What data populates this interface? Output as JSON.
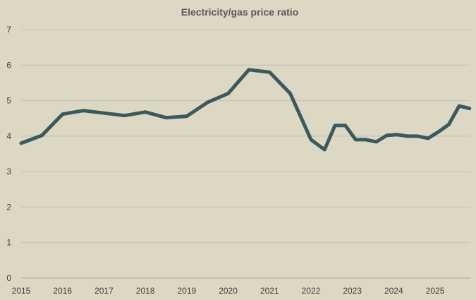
{
  "chart_data": {
    "type": "line",
    "title": "Electricity/gas price ratio",
    "xlabel": "",
    "ylabel": "",
    "ylim": [
      0,
      7
    ],
    "yticks": [
      0,
      1,
      2,
      3,
      4,
      5,
      6,
      7
    ],
    "xlim": [
      2015,
      2025.85
    ],
    "xticks": [
      "2015",
      "2016",
      "2017",
      "2018",
      "2019",
      "2020",
      "2021",
      "2022",
      "2023",
      "2024",
      "2025"
    ],
    "grid": true,
    "legend": "none",
    "series": [
      {
        "name": "Electricity/gas price ratio",
        "color": "#3a5a5e",
        "x": [
          2015.0,
          2015.5,
          2016.0,
          2016.5,
          2017.0,
          2017.5,
          2018.0,
          2018.5,
          2019.0,
          2019.5,
          2020.0,
          2020.5,
          2021.0,
          2021.5,
          2022.0,
          2022.33,
          2022.58,
          2022.83,
          2023.08,
          2023.33,
          2023.58,
          2023.83,
          2024.08,
          2024.33,
          2024.58,
          2024.83,
          2025.08,
          2025.33,
          2025.58,
          2025.83
        ],
        "y": [
          3.8,
          4.02,
          4.62,
          4.72,
          4.65,
          4.58,
          4.68,
          4.52,
          4.56,
          4.95,
          5.2,
          5.87,
          5.8,
          5.2,
          3.9,
          3.62,
          4.3,
          4.3,
          3.9,
          3.9,
          3.84,
          4.02,
          4.04,
          4.0,
          4.0,
          3.94,
          4.12,
          4.33,
          4.85,
          4.78
        ]
      }
    ]
  }
}
